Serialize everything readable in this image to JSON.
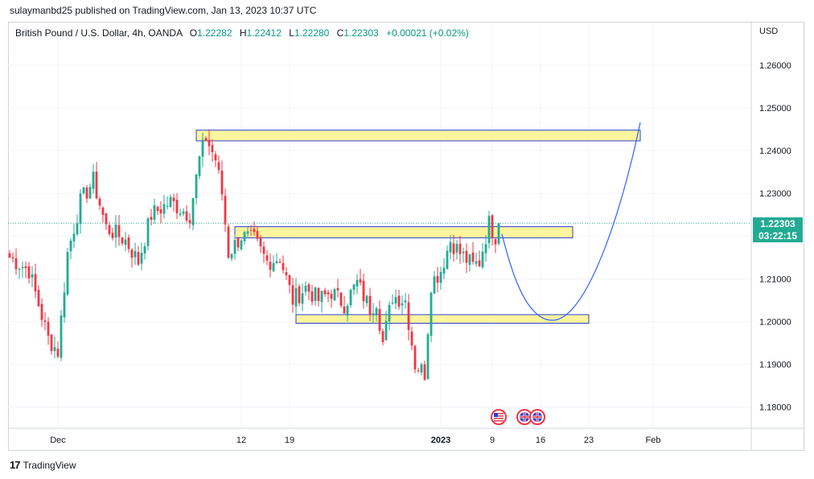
{
  "publisher_line": "sulaymanbd25 published on TradingView.com, Jan 13, 2023 10:37 UTC",
  "legend": {
    "symbol": "British Pound / U.S. Dollar, 4h, OANDA",
    "open_label": "O",
    "open": "1.22282",
    "high_label": "H",
    "high": "1.22412",
    "low_label": "L",
    "low": "1.22280",
    "close_label": "C",
    "close": "1.22303",
    "change": "+0.00021 (+0.02%)"
  },
  "axis": {
    "currency": "USD"
  },
  "price_tag": {
    "price": "1.22303",
    "countdown": "03:22:15"
  },
  "footer": {
    "logo": "17",
    "brand": "TradingView"
  },
  "colors": {
    "up": "#22ab94",
    "down": "#f23645",
    "zone_fill": "#fff59d",
    "zone_border": "#2a3fd6",
    "curve": "#2962ff"
  },
  "chart_data": {
    "type": "candlestick",
    "ylim": [
      1.175,
      1.27
    ],
    "y_ticks": [
      "1.26000",
      "1.25000",
      "1.24000",
      "1.23000",
      "1.22000",
      "1.21000",
      "1.20000",
      "1.19000",
      "1.18000"
    ],
    "y_tick_values": [
      1.26,
      1.25,
      1.24,
      1.23,
      1.22,
      1.21,
      1.2,
      1.19,
      1.18
    ],
    "x_ticks": [
      "Dec",
      "12",
      "19",
      "2023",
      "9",
      "16",
      "23",
      "Feb"
    ],
    "x_tick_index": [
      15,
      72,
      87,
      134,
      150,
      165,
      180,
      200
    ],
    "last_price": 1.22303,
    "anchors": [
      [
        0,
        1.215
      ],
      [
        6,
        1.212
      ],
      [
        12,
        1.196
      ],
      [
        15,
        1.193
      ],
      [
        18,
        1.216
      ],
      [
        22,
        1.228
      ],
      [
        26,
        1.233
      ],
      [
        30,
        1.222
      ],
      [
        36,
        1.219
      ],
      [
        40,
        1.214
      ],
      [
        44,
        1.225
      ],
      [
        50,
        1.228
      ],
      [
        56,
        1.225
      ],
      [
        59,
        1.238
      ],
      [
        61,
        1.243
      ],
      [
        64,
        1.238
      ],
      [
        66,
        1.23
      ],
      [
        68,
        1.216
      ],
      [
        72,
        1.22
      ],
      [
        76,
        1.219
      ],
      [
        80,
        1.214
      ],
      [
        84,
        1.215
      ],
      [
        88,
        1.205
      ],
      [
        92,
        1.208
      ],
      [
        96,
        1.205
      ],
      [
        100,
        1.207
      ],
      [
        104,
        1.204
      ],
      [
        108,
        1.209
      ],
      [
        112,
        1.203
      ],
      [
        114,
        1.205
      ],
      [
        116,
        1.195
      ],
      [
        119,
        1.206
      ],
      [
        123,
        1.205
      ],
      [
        126,
        1.19
      ],
      [
        129,
        1.188
      ],
      [
        131,
        1.209
      ],
      [
        134,
        1.212
      ],
      [
        137,
        1.219
      ],
      [
        140,
        1.216
      ],
      [
        144,
        1.213
      ],
      [
        146,
        1.214
      ],
      [
        149,
        1.223
      ],
      [
        151,
        1.22
      ],
      [
        152,
        1.223
      ]
    ],
    "zones": [
      {
        "name": "upper-resistance-zone",
        "from_index": 58,
        "to_index": 196,
        "top": 1.2448,
        "bottom": 1.2423
      },
      {
        "name": "middle-zone",
        "from_index": 70,
        "to_index": 175,
        "top": 1.2222,
        "bottom": 1.2196
      },
      {
        "name": "lower-support-zone",
        "from_index": 89,
        "to_index": 180,
        "top": 1.2016,
        "bottom": 1.1996
      }
    ],
    "projection": {
      "start": [
        153,
        1.2205
      ],
      "bottom": [
        169,
        1.2003
      ],
      "end": [
        196,
        1.2466
      ]
    },
    "event_icons": [
      {
        "name": "us-flag-event-icon",
        "index": 152
      },
      {
        "name": "gb-flag-event-icon",
        "index": 160
      },
      {
        "name": "gb-flag-event-icon-2",
        "index": 164
      }
    ]
  }
}
